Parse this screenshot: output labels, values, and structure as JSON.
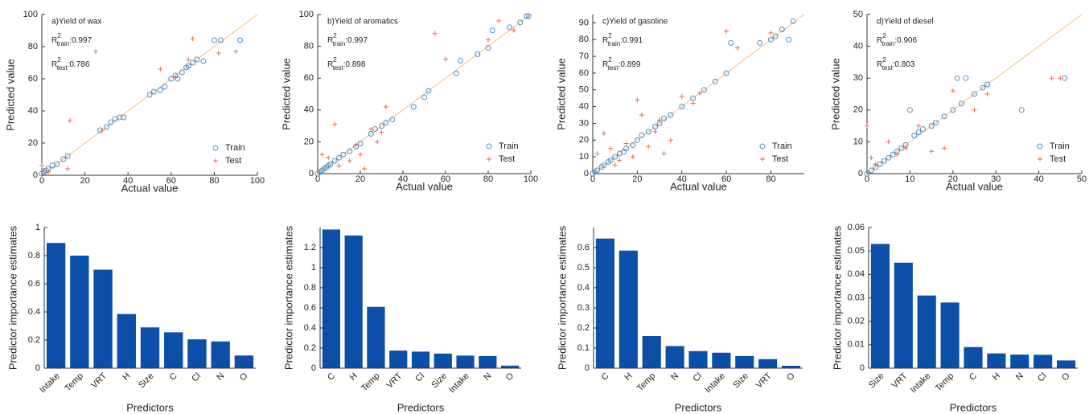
{
  "chart_data": [
    {
      "type": "scatter",
      "title": "a)Yield of wax",
      "xlabel": "Actual value",
      "ylabel": "Predicted value",
      "annotations": [
        {
          "base": "R",
          "sup": "2",
          "sub": "train",
          "text": ":0.997"
        },
        {
          "base": "R",
          "sup": "2",
          "sub": "test",
          "text": ":0.786"
        }
      ],
      "xlim": [
        0,
        100
      ],
      "ylim": [
        0,
        100
      ],
      "xticks": [
        0,
        20,
        40,
        60,
        80,
        100
      ],
      "yticks": [
        0,
        20,
        40,
        60,
        80,
        100
      ],
      "identity_line": true,
      "identity_line_color": "#f9c794",
      "legend": "lower right",
      "series": [
        {
          "name": "Train",
          "marker": "circle",
          "color": "#4a8fc9",
          "x": [
            0,
            1,
            2,
            3,
            5,
            7,
            10,
            12,
            27,
            30,
            32,
            34,
            36,
            38,
            50,
            52,
            55,
            57,
            60,
            62,
            63,
            65,
            67,
            68,
            70,
            72,
            75,
            80,
            83,
            92
          ],
          "y": [
            1,
            2,
            3,
            4,
            6,
            7,
            10,
            12,
            28,
            30,
            33,
            35,
            36,
            36,
            50,
            52,
            53,
            55,
            60,
            62,
            60,
            64,
            67,
            68,
            70,
            72,
            71,
            84,
            84,
            84
          ]
        },
        {
          "name": "Test",
          "marker": "plus",
          "color": "#e8704a",
          "x": [
            0,
            1,
            3,
            13,
            12,
            25,
            28,
            55,
            62,
            68,
            70,
            82,
            90
          ],
          "y": [
            6,
            3,
            2,
            34,
            4,
            77,
            28,
            66,
            61,
            72,
            85,
            76,
            77
          ]
        }
      ]
    },
    {
      "type": "scatter",
      "title": "b)Yield of aromatics",
      "xlabel": "Actual value",
      "ylabel": "Predicted value",
      "annotations": [
        {
          "base": "R",
          "sup": "2",
          "sub": "train",
          "text": ":0.997"
        },
        {
          "base": "R",
          "sup": "2",
          "sub": "test",
          "text": ":0.898"
        }
      ],
      "xlim": [
        0,
        100
      ],
      "ylim": [
        0,
        100
      ],
      "xticks": [
        0,
        20,
        40,
        60,
        80,
        100
      ],
      "yticks": [
        0,
        20,
        40,
        60,
        80,
        100
      ],
      "identity_line": true,
      "identity_line_color": "#f9c794",
      "legend": "lower right",
      "series": [
        {
          "name": "Train",
          "marker": "circle",
          "color": "#4a8fc9",
          "x": [
            0,
            1,
            2,
            3,
            4,
            5,
            6,
            8,
            10,
            12,
            15,
            18,
            20,
            25,
            27,
            30,
            32,
            35,
            45,
            50,
            52,
            65,
            67,
            75,
            80,
            82,
            90,
            95,
            98,
            99
          ],
          "y": [
            0,
            1,
            2,
            3,
            4,
            5,
            6,
            8,
            10,
            12,
            14,
            17,
            19,
            25,
            28,
            30,
            32,
            34,
            42,
            48,
            52,
            63,
            71,
            75,
            79,
            90,
            92,
            95,
            99,
            99
          ]
        },
        {
          "name": "Test",
          "marker": "plus",
          "color": "#e8704a",
          "x": [
            2,
            5,
            8,
            10,
            15,
            18,
            20,
            22,
            25,
            28,
            30,
            32,
            55,
            60,
            80,
            85,
            92
          ],
          "y": [
            12,
            10,
            31,
            5,
            8,
            18,
            12,
            3,
            28,
            20,
            26,
            42,
            88,
            72,
            84,
            96,
            90
          ]
        }
      ]
    },
    {
      "type": "scatter",
      "title": "c)Yield of gasoline",
      "xlabel": "Actual value",
      "ylabel": "Predicted value",
      "annotations": [
        {
          "base": "R",
          "sup": "2",
          "sub": "train",
          "text": ":0.991"
        },
        {
          "base": "R",
          "sup": "2",
          "sub": "test",
          "text": ":0.899"
        }
      ],
      "xlim": [
        0,
        95
      ],
      "ylim": [
        0,
        95
      ],
      "xticks": [
        0,
        20,
        40,
        60,
        80
      ],
      "yticks": [
        0,
        10,
        20,
        30,
        40,
        50,
        60,
        70,
        80,
        90
      ],
      "identity_line": true,
      "identity_line_color": "#f9c794",
      "legend": "lower right",
      "series": [
        {
          "name": "Train",
          "marker": "circle",
          "color": "#4a8fc9",
          "x": [
            0,
            1,
            2,
            4,
            5,
            7,
            8,
            10,
            12,
            14,
            15,
            18,
            20,
            22,
            25,
            28,
            30,
            32,
            35,
            40,
            45,
            50,
            55,
            60,
            62,
            75,
            80,
            82,
            85,
            88,
            90
          ],
          "y": [
            0,
            1,
            2,
            4,
            5,
            7,
            8,
            10,
            12,
            13,
            15,
            17,
            20,
            23,
            25,
            28,
            30,
            33,
            35,
            40,
            45,
            50,
            55,
            60,
            78,
            78,
            80,
            82,
            86,
            80,
            91
          ]
        },
        {
          "name": "Test",
          "marker": "plus",
          "color": "#e8704a",
          "x": [
            2,
            5,
            8,
            10,
            12,
            15,
            18,
            20,
            22,
            25,
            28,
            30,
            32,
            35,
            40,
            45,
            48,
            60,
            65,
            80
          ],
          "y": [
            12,
            24,
            15,
            5,
            8,
            18,
            10,
            44,
            35,
            16,
            25,
            32,
            12,
            20,
            46,
            42,
            48,
            85,
            75,
            84
          ]
        }
      ]
    },
    {
      "type": "scatter",
      "title": "d)Yield of diesel",
      "xlabel": "Actual value",
      "ylabel": "Predicted value",
      "annotations": [
        {
          "base": "R",
          "sup": "2",
          "sub": "train",
          "text": ":0.906"
        },
        {
          "base": "R",
          "sup": "2",
          "sub": "test",
          "text": ":0.803"
        }
      ],
      "xlim": [
        0,
        50
      ],
      "ylim": [
        0,
        50
      ],
      "xticks": [
        0,
        10,
        20,
        30,
        40,
        50
      ],
      "yticks": [
        0,
        10,
        20,
        30,
        40,
        50
      ],
      "identity_line": true,
      "identity_line_color": "#f9c794",
      "legend": "lower right",
      "series": [
        {
          "name": "Train",
          "marker": "circle",
          "color": "#4a8fc9",
          "x": [
            0,
            1,
            2,
            3,
            4,
            5,
            6,
            7,
            8,
            9,
            10,
            11,
            12,
            13,
            15,
            16,
            18,
            20,
            21,
            22,
            23,
            25,
            27,
            28,
            36,
            46
          ],
          "y": [
            0,
            1,
            2,
            3,
            4,
            5,
            6,
            7,
            8,
            9,
            20,
            12,
            13,
            14,
            15,
            16,
            18,
            20,
            30,
            22,
            30,
            25,
            27,
            28,
            20,
            30
          ]
        },
        {
          "name": "Test",
          "marker": "plus",
          "color": "#e8704a",
          "x": [
            0,
            1,
            2,
            5,
            7,
            9,
            12,
            15,
            18,
            20,
            25,
            28,
            43,
            45
          ],
          "y": [
            15,
            5,
            3,
            10,
            6,
            8,
            15,
            7,
            8,
            26,
            20,
            25,
            30,
            30
          ]
        }
      ]
    },
    {
      "type": "bar",
      "xlabel": "Predictors",
      "ylabel": "Predictor importance estimates",
      "color": "#0b4fa8",
      "categories": [
        "Intake",
        "Temp",
        "VRT",
        "H",
        "Size",
        "C",
        "Cl",
        "N",
        "O"
      ],
      "values": [
        0.89,
        0.8,
        0.7,
        0.385,
        0.29,
        0.255,
        0.205,
        0.19,
        0.09
      ],
      "ylim": [
        0,
        1
      ],
      "yticks": [
        0,
        0.2,
        0.4,
        0.6,
        0.8,
        1
      ]
    },
    {
      "type": "bar",
      "xlabel": "Predictors",
      "ylabel": "Predictor importance estimates",
      "color": "#0b4fa8",
      "categories": [
        "C",
        "H",
        "Temp",
        "VRT",
        "Cl",
        "Size",
        "Intake",
        "N",
        "O"
      ],
      "values": [
        1.38,
        1.32,
        0.61,
        0.175,
        0.165,
        0.145,
        0.125,
        0.12,
        0.025
      ],
      "ylim": [
        0,
        1.4
      ],
      "yticks": [
        0,
        0.2,
        0.4,
        0.6,
        0.8,
        1,
        1.2
      ]
    },
    {
      "type": "bar",
      "xlabel": "Predictors",
      "ylabel": "Predictor importance estimates",
      "color": "#0b4fa8",
      "categories": [
        "C",
        "H",
        "Temp",
        "N",
        "Cl",
        "Intake",
        "Size",
        "VRT",
        "O"
      ],
      "values": [
        0.645,
        0.585,
        0.16,
        0.11,
        0.085,
        0.077,
        0.06,
        0.045,
        0.012
      ],
      "ylim": [
        0,
        0.7
      ],
      "yticks": [
        0,
        0.1,
        0.2,
        0.3,
        0.4,
        0.5,
        0.6
      ]
    },
    {
      "type": "bar",
      "xlabel": "Predictors",
      "ylabel": "Predictor importance estimates",
      "color": "#0b4fa8",
      "categories": [
        "Size",
        "VRT",
        "Intake",
        "Temp",
        "C",
        "H",
        "N",
        "Cl",
        "O"
      ],
      "values": [
        0.053,
        0.045,
        0.031,
        0.028,
        0.009,
        0.0063,
        0.0058,
        0.0057,
        0.0033
      ],
      "ylim": [
        0,
        0.06
      ],
      "yticks": [
        0,
        0.01,
        0.02,
        0.03,
        0.04,
        0.05,
        0.06
      ]
    }
  ]
}
